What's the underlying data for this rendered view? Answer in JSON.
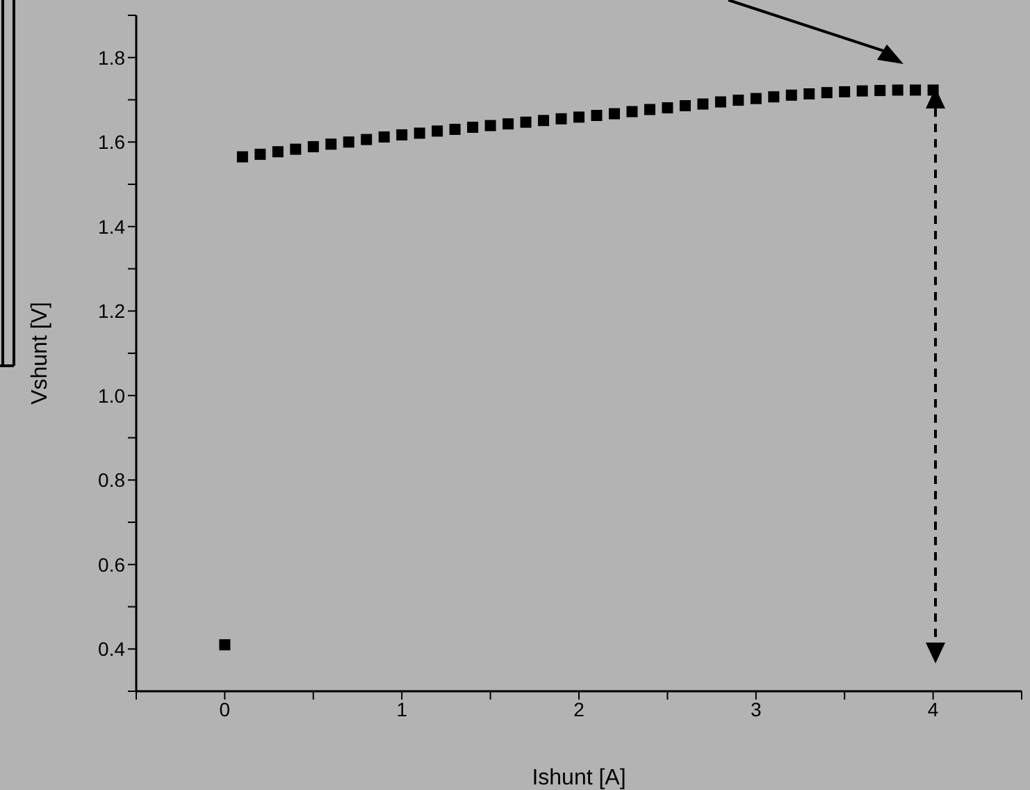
{
  "chart_data": {
    "type": "scatter",
    "xlabel": "Ishunt [A]",
    "ylabel": "Vshunt [V]",
    "x": [
      0,
      0.1,
      0.2,
      0.3,
      0.4,
      0.5,
      0.6,
      0.7,
      0.8,
      0.9,
      1.0,
      1.1,
      1.2,
      1.3,
      1.4,
      1.5,
      1.6,
      1.7,
      1.8,
      1.9,
      2.0,
      2.1,
      2.2,
      2.3,
      2.4,
      2.5,
      2.6,
      2.7,
      2.8,
      2.9,
      3.0,
      3.1,
      3.2,
      3.3,
      3.4,
      3.5,
      3.6,
      3.7,
      3.8,
      3.9,
      4.0
    ],
    "series": [
      {
        "color": "#000000",
        "values": [
          0.41,
          1.565,
          1.571,
          1.577,
          1.583,
          1.589,
          1.595,
          1.6,
          1.606,
          1.612,
          1.617,
          1.621,
          1.626,
          1.63,
          1.635,
          1.639,
          1.643,
          1.647,
          1.651,
          1.655,
          1.659,
          1.663,
          1.667,
          1.672,
          1.677,
          1.681,
          1.686,
          1.69,
          1.695,
          1.699,
          1.703,
          1.707,
          1.711,
          1.714,
          1.717,
          1.719,
          1.721,
          1.722,
          1.723,
          1.723,
          1.723
        ]
      }
    ],
    "marker": "square",
    "xlim": [
      -0.5,
      4.5
    ],
    "xticks": [
      {
        "value": -0.5,
        "label": null
      },
      0,
      {
        "value": 0.5,
        "label": null
      },
      1,
      {
        "value": 1.5,
        "label": null
      },
      2,
      {
        "value": 2.5,
        "label": null
      },
      3,
      {
        "value": 3.5,
        "label": null
      },
      4,
      {
        "value": 4.5,
        "label": null
      }
    ],
    "ylim": [
      0.3,
      1.9
    ],
    "yticks": [
      {
        "value": 0.3,
        "label": null
      },
      {
        "value": 0.4,
        "label": "0.4"
      },
      {
        "value": 0.5,
        "label": null
      },
      {
        "value": 0.6,
        "label": "0.6"
      },
      {
        "value": 0.7,
        "label": null
      },
      {
        "value": 0.8,
        "label": "0.8"
      },
      {
        "value": 0.9,
        "label": null
      },
      {
        "value": 1.0,
        "label": "1.0"
      },
      {
        "value": 1.1,
        "label": null
      },
      {
        "value": 1.2,
        "label": "1.2"
      },
      {
        "value": 1.3,
        "label": null
      },
      {
        "value": 1.4,
        "label": "1.4"
      },
      {
        "value": 1.5,
        "label": null
      },
      {
        "value": 1.6,
        "label": "1.6"
      },
      {
        "value": 1.7,
        "label": null
      },
      {
        "value": 1.8,
        "label": "1.8"
      },
      {
        "value": 1.9,
        "label": null
      }
    ]
  }
}
